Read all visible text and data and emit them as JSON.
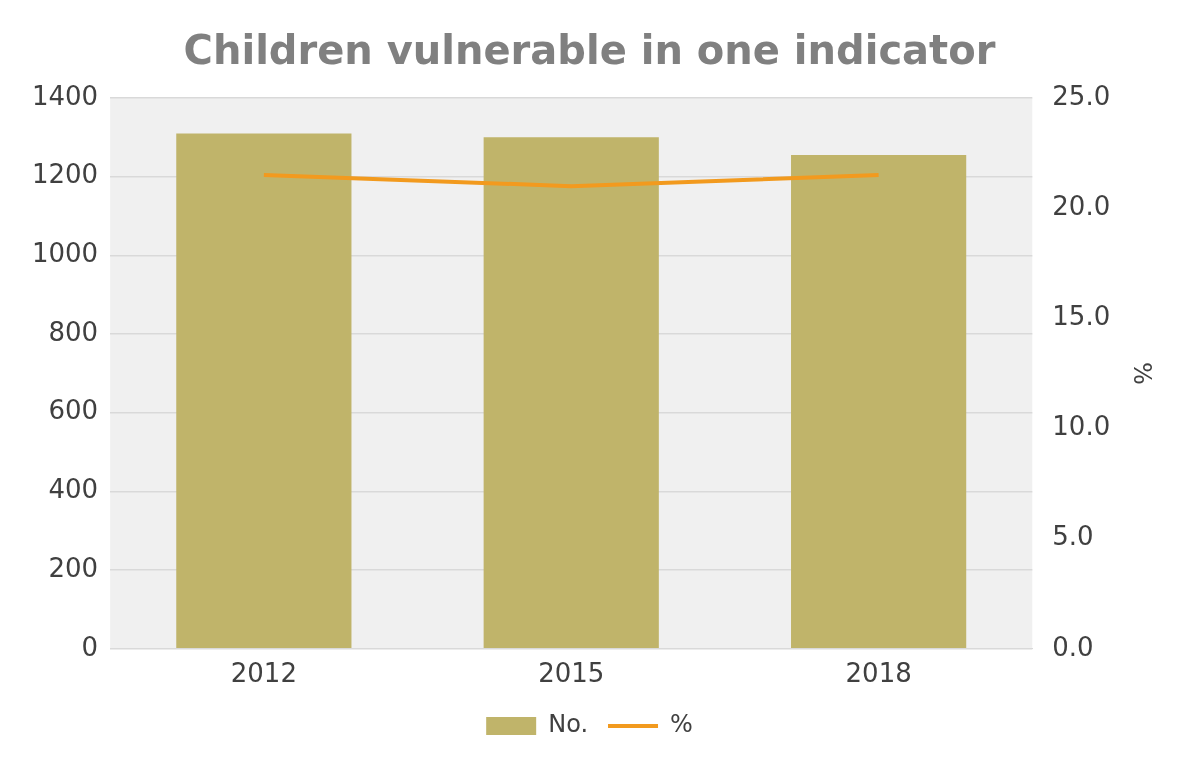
{
  "chart_data": {
    "type": "bar",
    "title": "Children vulnerable in one indicator",
    "y2label": "%",
    "categories": [
      "2012",
      "2015",
      "2018"
    ],
    "series": [
      {
        "name": "No.",
        "color": "#c0b46a",
        "values": [
          1310,
          1300,
          1255
        ]
      },
      {
        "name": "%",
        "type": "line",
        "axis": "y2",
        "color": "#f29a1e",
        "values": [
          21.5,
          21.0,
          21.5
        ]
      }
    ],
    "ylim": [
      0,
      1400
    ],
    "yticks": [
      0,
      200,
      400,
      600,
      800,
      1000,
      1200,
      1400
    ],
    "y2lim": [
      0,
      25
    ],
    "y2ticks": [
      {
        "value": 0,
        "label": "0.0"
      },
      {
        "value": 5,
        "label": "5.0"
      },
      {
        "value": 10,
        "label": "10.0"
      },
      {
        "value": 15,
        "label": "15.0"
      },
      {
        "value": 20,
        "label": "20.0"
      },
      {
        "value": 25,
        "label": "25.0"
      }
    ],
    "grid": "y",
    "legend": "bottom",
    "marker": "none",
    "line_style": "solid"
  }
}
